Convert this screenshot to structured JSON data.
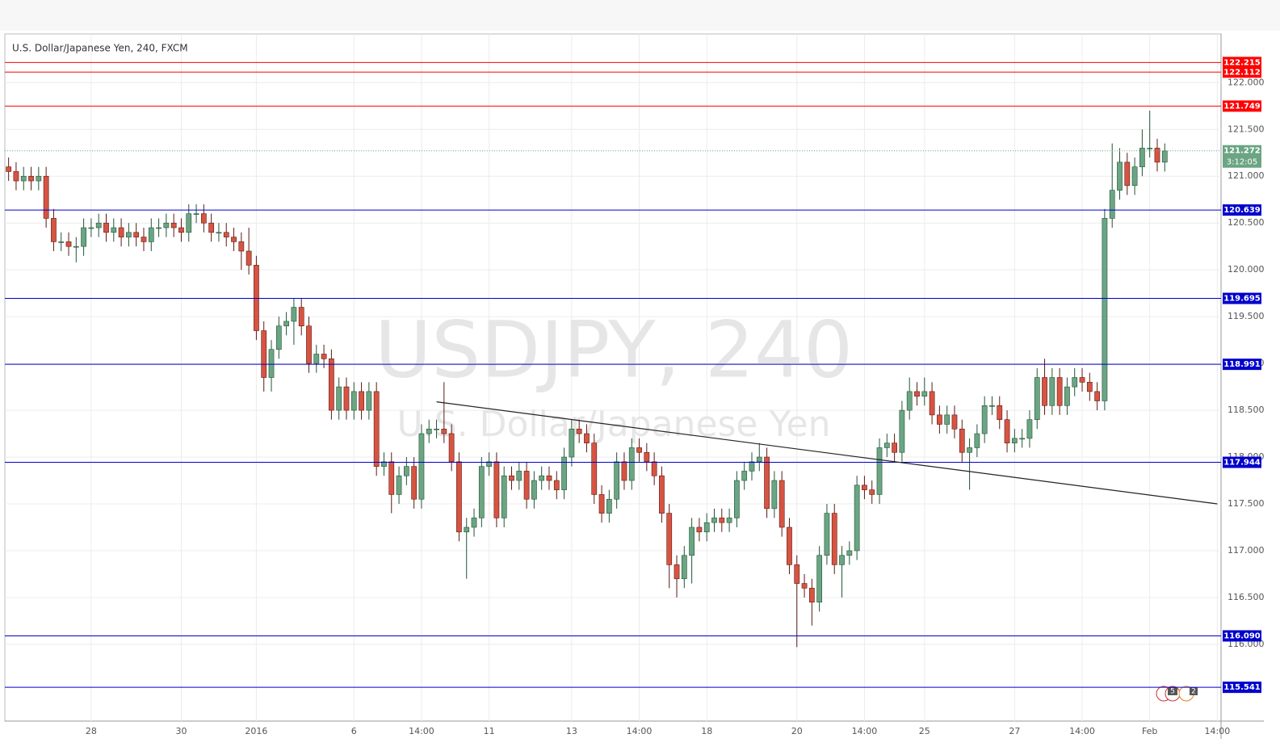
{
  "chart_data": {
    "type": "candlestick",
    "title": "U.S. Dollar/Japanese Yen, 240, FXCM",
    "watermark": [
      "USDJPY, 240",
      "U.S. Dollar/Japanese Yen"
    ],
    "up_color": "#6ba583",
    "down_color": "#d75442",
    "categories": [
      null,
      null,
      null,
      null,
      null,
      null,
      null,
      null,
      null,
      null,
      null,
      "28",
      null,
      null,
      null,
      null,
      null,
      null,
      null,
      null,
      null,
      null,
      null,
      "30",
      null,
      null,
      null,
      null,
      null,
      null,
      null,
      null,
      null,
      "2016",
      null,
      null,
      null,
      null,
      null,
      null,
      null,
      null,
      null,
      null,
      null,
      null,
      "6",
      null,
      null,
      null,
      null,
      null,
      null,
      null,
      null,
      "14:00",
      null,
      null,
      null,
      null,
      null,
      null,
      null,
      null,
      "11",
      null,
      null,
      null,
      null,
      null,
      null,
      null,
      null,
      null,
      null,
      "13",
      null,
      null,
      null,
      null,
      null,
      null,
      null,
      null,
      "14:00",
      null,
      null,
      null,
      null,
      null,
      null,
      null,
      null,
      "18",
      null,
      null,
      null,
      null,
      null,
      null,
      null,
      null,
      null,
      null,
      null,
      "20",
      null,
      null,
      null,
      null,
      null,
      null,
      null,
      null,
      "14:00",
      null,
      null,
      null,
      null,
      null,
      null,
      null,
      "25",
      null,
      null,
      null,
      null,
      null,
      null,
      null,
      null,
      null,
      null,
      null,
      "27",
      null,
      null,
      null,
      null,
      null,
      null,
      null,
      null,
      "14:00",
      null,
      null,
      null,
      null,
      null,
      null,
      null,
      null,
      "Feb",
      null,
      null,
      null,
      null,
      null,
      null,
      null,
      null,
      "14:00"
    ],
    "open": [
      121.1,
      121.05,
      120.95,
      121.0,
      120.95,
      121.0,
      120.55,
      120.3,
      120.3,
      120.25,
      120.25,
      120.45,
      120.45,
      120.5,
      120.4,
      120.45,
      120.35,
      120.4,
      120.35,
      120.3,
      120.45,
      120.45,
      120.5,
      120.45,
      120.4,
      120.6,
      120.6,
      120.5,
      120.4,
      120.4,
      120.35,
      120.3,
      120.2,
      120.05,
      119.35,
      118.85,
      119.15,
      119.4,
      119.45,
      119.6,
      119.4,
      119.0,
      119.1,
      119.05,
      118.5,
      118.75,
      118.5,
      118.7,
      118.5,
      118.7,
      117.9,
      117.95,
      117.6,
      117.8,
      117.9,
      117.55,
      118.25,
      118.3,
      118.3,
      118.25,
      117.95,
      117.2,
      117.25,
      117.35,
      117.9,
      117.95,
      117.35,
      117.8,
      117.75,
      117.85,
      117.55,
      117.75,
      117.8,
      117.75,
      117.65,
      118.0,
      118.3,
      118.25,
      118.15,
      117.6,
      117.4,
      117.55,
      117.95,
      117.75,
      118.1,
      118.05,
      117.95,
      117.8,
      117.4,
      116.85,
      116.7,
      116.95,
      117.25,
      117.2,
      117.3,
      117.35,
      117.3,
      117.35,
      117.75,
      117.85,
      117.95,
      118.0,
      117.45,
      117.75,
      117.25,
      116.85,
      116.65,
      116.6,
      116.45,
      116.95,
      117.4,
      116.85,
      116.95,
      117.0,
      117.7,
      117.65,
      117.6,
      118.1,
      118.15,
      118.05,
      118.5,
      118.7,
      118.65,
      118.7,
      118.45,
      118.35,
      118.45,
      118.3,
      118.05,
      118.1,
      118.25,
      118.55,
      118.55,
      118.4,
      118.15,
      118.2,
      118.2,
      118.4,
      118.85,
      118.55,
      118.85,
      118.55,
      118.75,
      118.85,
      118.8,
      118.7,
      118.6,
      120.55,
      120.85,
      121.15,
      120.9,
      121.1,
      121.3,
      121.3,
      121.15,
      null,
      null,
      null,
      null,
      null,
      null,
      null
    ],
    "high": [
      121.2,
      121.15,
      121.1,
      121.1,
      121.1,
      121.1,
      120.65,
      120.4,
      120.4,
      120.35,
      120.55,
      120.55,
      120.6,
      120.6,
      120.55,
      120.55,
      120.5,
      120.5,
      120.45,
      120.55,
      120.55,
      120.6,
      120.6,
      120.55,
      120.7,
      120.7,
      120.7,
      120.6,
      120.5,
      120.5,
      120.45,
      120.4,
      120.45,
      120.15,
      119.45,
      119.25,
      119.5,
      119.55,
      119.7,
      119.7,
      119.5,
      119.2,
      119.2,
      119.15,
      118.85,
      118.85,
      118.8,
      118.8,
      118.8,
      118.8,
      118.05,
      118.05,
      117.9,
      118.0,
      118.0,
      118.35,
      118.4,
      118.4,
      118.8,
      118.35,
      118.05,
      117.35,
      117.45,
      118.0,
      118.05,
      118.05,
      117.9,
      117.9,
      117.95,
      117.95,
      117.85,
      117.9,
      117.9,
      117.85,
      118.1,
      118.4,
      118.4,
      118.35,
      118.25,
      117.7,
      117.65,
      118.05,
      118.05,
      118.2,
      118.2,
      118.15,
      118.05,
      117.9,
      117.5,
      116.95,
      117.05,
      117.35,
      117.35,
      117.4,
      117.45,
      117.45,
      117.45,
      117.85,
      117.95,
      118.05,
      118.15,
      118.1,
      117.85,
      117.85,
      117.35,
      116.95,
      116.75,
      116.7,
      117.05,
      117.5,
      117.5,
      117.05,
      117.1,
      117.8,
      117.8,
      117.75,
      118.2,
      118.25,
      118.25,
      118.6,
      118.85,
      118.8,
      118.85,
      118.8,
      118.55,
      118.55,
      118.55,
      118.4,
      118.2,
      118.35,
      118.65,
      118.65,
      118.65,
      118.5,
      118.3,
      118.3,
      118.5,
      118.95,
      119.05,
      118.95,
      118.95,
      118.85,
      118.95,
      118.95,
      118.9,
      118.8,
      120.65,
      121.35,
      121.3,
      121.25,
      121.2,
      121.5,
      121.7,
      121.4,
      121.35,
      null,
      null,
      null,
      null,
      null,
      null,
      null
    ],
    "low": [
      120.95,
      120.85,
      120.85,
      120.85,
      120.85,
      120.45,
      120.2,
      120.2,
      120.15,
      120.08,
      120.15,
      120.35,
      120.35,
      120.3,
      120.3,
      120.25,
      120.25,
      120.25,
      120.2,
      120.2,
      120.35,
      120.35,
      120.35,
      120.3,
      120.3,
      120.5,
      120.4,
      120.3,
      120.3,
      120.25,
      120.2,
      120.0,
      119.95,
      119.25,
      118.7,
      118.7,
      119.05,
      119.3,
      119.2,
      119.3,
      118.9,
      118.9,
      118.95,
      118.4,
      118.4,
      118.4,
      118.4,
      118.4,
      118.4,
      117.8,
      117.8,
      117.4,
      117.5,
      117.7,
      117.45,
      117.45,
      118.15,
      118.2,
      118.15,
      117.85,
      117.1,
      116.7,
      117.15,
      117.25,
      117.8,
      117.25,
      117.25,
      117.65,
      117.65,
      117.45,
      117.45,
      117.65,
      117.65,
      117.55,
      117.55,
      117.9,
      118.15,
      118.05,
      117.5,
      117.3,
      117.3,
      117.45,
      117.65,
      117.65,
      117.95,
      117.85,
      117.7,
      117.3,
      116.6,
      116.5,
      116.6,
      116.65,
      117.1,
      117.1,
      117.2,
      117.2,
      117.2,
      117.25,
      117.65,
      117.75,
      117.85,
      117.35,
      117.35,
      117.15,
      116.75,
      115.97,
      116.5,
      116.2,
      116.35,
      116.85,
      116.75,
      116.5,
      116.85,
      116.9,
      117.55,
      117.5,
      117.5,
      118.0,
      117.95,
      117.95,
      118.4,
      118.55,
      118.55,
      118.35,
      118.25,
      118.25,
      118.2,
      117.95,
      117.65,
      118.0,
      118.15,
      118.45,
      118.3,
      118.05,
      118.05,
      118.1,
      118.1,
      118.3,
      118.45,
      118.45,
      118.45,
      118.45,
      118.65,
      118.7,
      118.6,
      118.5,
      118.5,
      120.45,
      120.75,
      120.8,
      120.8,
      121.0,
      121.2,
      121.05,
      121.05,
      null,
      null,
      null,
      null,
      null,
      null,
      null
    ],
    "close": [
      121.05,
      120.95,
      121.0,
      120.95,
      121.0,
      120.55,
      120.3,
      120.3,
      120.25,
      120.25,
      120.45,
      120.45,
      120.5,
      120.4,
      120.45,
      120.35,
      120.4,
      120.35,
      120.3,
      120.45,
      120.45,
      120.5,
      120.45,
      120.4,
      120.6,
      120.6,
      120.5,
      120.4,
      120.4,
      120.35,
      120.3,
      120.2,
      120.05,
      119.35,
      118.85,
      119.15,
      119.4,
      119.45,
      119.6,
      119.4,
      119.0,
      119.1,
      119.05,
      118.5,
      118.75,
      118.5,
      118.7,
      118.5,
      118.7,
      117.9,
      117.95,
      117.6,
      117.8,
      117.9,
      117.55,
      118.25,
      118.3,
      118.3,
      118.25,
      117.95,
      117.2,
      117.25,
      117.35,
      117.9,
      117.95,
      117.35,
      117.8,
      117.75,
      117.85,
      117.55,
      117.75,
      117.8,
      117.75,
      117.65,
      118.0,
      118.3,
      118.25,
      118.15,
      117.6,
      117.4,
      117.55,
      117.95,
      117.75,
      118.1,
      118.05,
      117.95,
      117.8,
      117.4,
      116.85,
      116.7,
      116.95,
      117.25,
      117.2,
      117.3,
      117.35,
      117.3,
      117.35,
      117.75,
      117.85,
      117.95,
      118.0,
      117.45,
      117.75,
      117.25,
      116.85,
      116.65,
      116.6,
      116.45,
      116.95,
      117.4,
      116.85,
      116.95,
      117.0,
      117.7,
      117.65,
      117.6,
      118.1,
      118.15,
      118.05,
      118.5,
      118.7,
      118.65,
      118.7,
      118.45,
      118.35,
      118.45,
      118.3,
      118.05,
      118.1,
      118.25,
      118.55,
      118.55,
      118.4,
      118.15,
      118.2,
      118.2,
      118.4,
      118.85,
      118.55,
      118.85,
      118.55,
      118.75,
      118.85,
      118.8,
      118.7,
      118.6,
      120.55,
      120.85,
      121.15,
      120.9,
      121.1,
      121.3,
      121.3,
      121.15,
      121.27,
      null,
      null,
      null,
      null,
      null,
      null,
      null
    ],
    "ylim": [
      115.18,
      122.52
    ],
    "yticks": [
      {
        "value": 116,
        "label": "116.000"
      },
      {
        "value": 116.5,
        "label": "116.500"
      },
      {
        "value": 117,
        "label": "117.000"
      },
      {
        "value": 117.5,
        "label": "117.500"
      },
      {
        "value": 118,
        "label": "118.000"
      },
      {
        "value": 118.5,
        "label": "118.500"
      },
      {
        "value": 119,
        "label": "119.000"
      },
      {
        "value": 119.5,
        "label": "119.500"
      },
      {
        "value": 120,
        "label": "120.000"
      },
      {
        "value": 120.5,
        "label": "120.500"
      },
      {
        "value": 121,
        "label": "121.000"
      },
      {
        "value": 121.5,
        "label": "121.500"
      },
      {
        "value": 122,
        "label": "122.000"
      }
    ],
    "levels": [
      {
        "value": 122.215,
        "color": "#ff0000"
      },
      {
        "value": 122.112,
        "color": "#ff0000"
      },
      {
        "value": 121.749,
        "color": "#ff0000"
      },
      {
        "value": 120.639,
        "color": "#0000cc"
      },
      {
        "value": 119.695,
        "color": "#0000cc"
      },
      {
        "value": 118.991,
        "color": "#0000cc"
      },
      {
        "value": 117.944,
        "color": "#0000cc"
      },
      {
        "value": 116.09,
        "label": "116.090",
        "color": "#0000cc"
      },
      {
        "value": 115.541,
        "color": "#0000cc"
      }
    ],
    "trendline": {
      "x": [
        57,
        161
      ],
      "y": [
        118.59,
        117.5
      ]
    },
    "last_price": {
      "value": 121.272,
      "countdown": "3:12:05",
      "color": "#6ba583"
    },
    "events": [
      "5",
      "2"
    ],
    "grid": true
  }
}
